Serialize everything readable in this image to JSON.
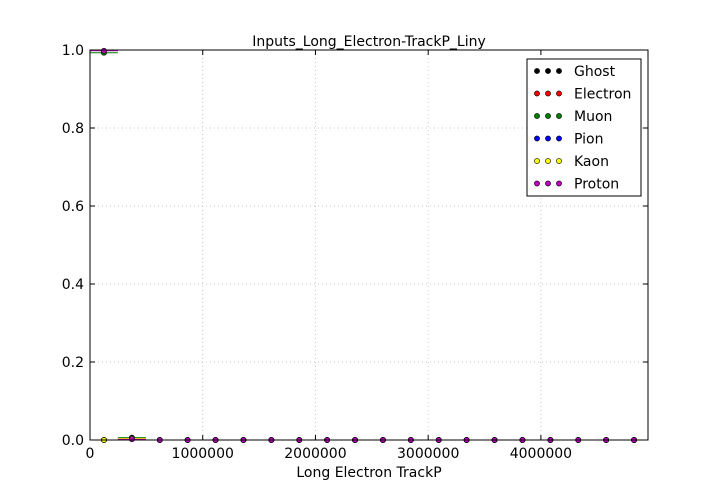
{
  "chart_data": {
    "type": "scatter",
    "title": "Inputs_Long_Electron-TrackP_Liny",
    "xlabel": "Long Electron TrackP",
    "ylabel": "",
    "xlim": [
      0,
      4950000
    ],
    "ylim": [
      0,
      1.0
    ],
    "xticks": [
      0,
      1000000,
      2000000,
      3000000,
      4000000
    ],
    "xtick_labels": [
      "0",
      "1000000",
      "2000000",
      "3000000",
      "4000000"
    ],
    "yticks": [
      0.0,
      0.2,
      0.4,
      0.6,
      0.8,
      1.0
    ],
    "ytick_labels": [
      "0.0",
      "0.2",
      "0.4",
      "0.6",
      "0.8",
      "1.0"
    ],
    "grid": true,
    "legend_position": "top-right",
    "bin_width": 247500,
    "x": [
      123750,
      371250,
      618750,
      866250,
      1113750,
      1361250,
      1608750,
      1856250,
      2103750,
      2351250,
      2598750,
      2846250,
      3093750,
      3341250,
      3588750,
      3836250,
      4083750,
      4331250,
      4578750,
      4826250
    ],
    "series": [
      {
        "name": "Ghost",
        "color": "#000000",
        "values": [
          0.0,
          0.004,
          0,
          0,
          0,
          0,
          0,
          0,
          0,
          0,
          0,
          0,
          0,
          0,
          0,
          0,
          0,
          0,
          0,
          0
        ]
      },
      {
        "name": "Electron",
        "color": "#ff0000",
        "values": [
          0.0,
          0.004,
          0,
          0,
          0,
          0,
          0,
          0,
          0,
          0,
          0,
          0,
          0,
          0,
          0,
          0,
          0,
          0,
          0,
          0
        ]
      },
      {
        "name": "Muon",
        "color": "#008000",
        "values": [
          0.993,
          0.006,
          0,
          0,
          0,
          0,
          0,
          0,
          0,
          0,
          0,
          0,
          0,
          0,
          0,
          0,
          0,
          0,
          0,
          0
        ]
      },
      {
        "name": "Pion",
        "color": "#0000ff",
        "values": [
          0.0,
          0.004,
          0,
          0,
          0,
          0,
          0,
          0,
          0,
          0,
          0,
          0,
          0,
          0,
          0,
          0,
          0,
          0,
          0,
          0
        ]
      },
      {
        "name": "Kaon",
        "color": "#ffff00",
        "values": [
          0.0,
          0.004,
          0,
          0,
          0,
          0,
          0,
          0,
          0,
          0,
          0,
          0,
          0,
          0,
          0,
          0,
          0,
          0,
          0,
          0
        ]
      },
      {
        "name": "Proton",
        "color": "#bf00bf",
        "values": [
          0.998,
          0.002,
          0,
          0,
          0,
          0,
          0,
          0,
          0,
          0,
          0,
          0,
          0,
          0,
          0,
          0,
          0,
          0,
          0,
          0
        ]
      }
    ]
  }
}
